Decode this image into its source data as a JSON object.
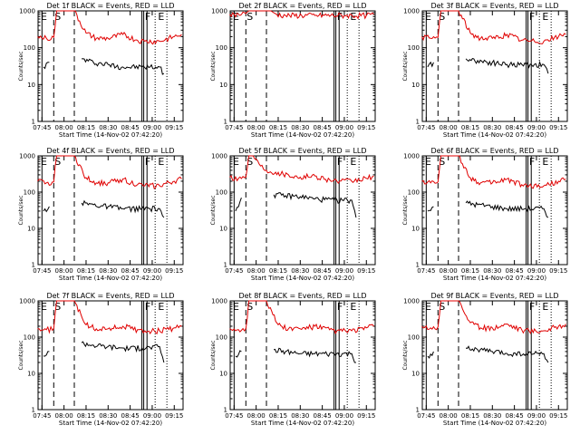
{
  "figure": {
    "x_axis_title": "Start Time (14-Nov-02 07:42:20)",
    "y_axis_title": "Counts/sec",
    "x_tick_labels": [
      "07:45",
      "08:00",
      "08:15",
      "08:30",
      "08:45",
      "09:00",
      "09:15"
    ],
    "y_tick_labels": [
      "1",
      "10",
      "100",
      "1000"
    ],
    "colors": {
      "events": "#000000",
      "lld": "#e00000"
    },
    "legend_text": "BLACK = Events, RED = LLD"
  },
  "chart_data": [
    {
      "type": "line",
      "title": "Det 1f BLACK = Events, RED = LLD",
      "markers": [
        "E",
        "S",
        "F",
        "E"
      ],
      "series": [
        {
          "key": "events",
          "x": [
            "07:45",
            "07:46",
            "07:50",
            "07:53",
            "08:07",
            "08:12",
            "08:20",
            "08:30",
            "08:40",
            "08:53",
            "09:05",
            "09:08"
          ],
          "values": [
            null,
            30,
            40,
            null,
            null,
            50,
            40,
            35,
            30,
            30,
            30,
            20
          ]
        },
        {
          "key": "lld",
          "x": [
            "07:42",
            "07:48",
            "07:53",
            "07:55",
            "07:58",
            "08:02",
            "08:07",
            "08:15",
            "08:22",
            "08:30",
            "08:40",
            "08:50",
            "08:55",
            "09:05",
            "09:15",
            "09:20"
          ],
          "values": [
            200,
            180,
            190,
            1000,
            1000,
            1000,
            1000,
            250,
            180,
            180,
            230,
            160,
            150,
            150,
            200,
            230
          ]
        }
      ]
    },
    {
      "type": "line",
      "title": "Det 2f BLACK = Events, RED = LLD",
      "markers": [
        "E",
        "S",
        "F",
        "E"
      ],
      "series": [
        {
          "key": "events",
          "x": [],
          "values": []
        },
        {
          "key": "lld",
          "x": [
            "07:42",
            "07:48",
            "07:53",
            "07:55",
            "08:05",
            "08:10",
            "08:14",
            "08:20",
            "08:40",
            "09:00",
            "09:15",
            "09:20"
          ],
          "values": [
            800,
            800,
            850,
            1000,
            1000,
            1000,
            800,
            750,
            750,
            750,
            750,
            800
          ]
        }
      ]
    },
    {
      "type": "line",
      "title": "Det 3f BLACK = Events, RED = LLD",
      "markers": [
        "E",
        "S",
        "F",
        "E"
      ],
      "series": [
        {
          "key": "events",
          "x": [
            "07:45",
            "07:46",
            "07:50",
            "07:53",
            "08:07",
            "08:12",
            "08:20",
            "08:30",
            "08:40",
            "08:53",
            "09:05",
            "09:08"
          ],
          "values": [
            null,
            30,
            40,
            null,
            null,
            50,
            45,
            40,
            35,
            35,
            35,
            20
          ]
        },
        {
          "key": "lld",
          "x": [
            "07:42",
            "07:48",
            "07:53",
            "07:55",
            "07:58",
            "08:02",
            "08:07",
            "08:15",
            "08:22",
            "08:30",
            "08:40",
            "08:50",
            "08:55",
            "09:05",
            "09:15",
            "09:20"
          ],
          "values": [
            200,
            180,
            190,
            1000,
            1000,
            1000,
            1000,
            250,
            180,
            180,
            230,
            160,
            150,
            150,
            200,
            230
          ]
        }
      ]
    },
    {
      "type": "line",
      "title": "Det 4f BLACK = Events, RED = LLD",
      "markers": [
        "E",
        "S",
        "F",
        "E"
      ],
      "series": [
        {
          "key": "events",
          "x": [
            "07:45",
            "07:46",
            "07:50",
            "07:53",
            "08:07",
            "08:12",
            "08:20",
            "08:30",
            "08:40",
            "08:53",
            "09:05",
            "09:08"
          ],
          "values": [
            null,
            30,
            40,
            null,
            null,
            50,
            45,
            40,
            35,
            35,
            35,
            20
          ]
        },
        {
          "key": "lld",
          "x": [
            "07:42",
            "07:48",
            "07:53",
            "07:55",
            "07:58",
            "08:02",
            "08:07",
            "08:15",
            "08:22",
            "08:30",
            "08:40",
            "08:50",
            "08:55",
            "09:05",
            "09:15",
            "09:20"
          ],
          "values": [
            200,
            180,
            190,
            1000,
            1000,
            1000,
            1000,
            250,
            180,
            180,
            230,
            160,
            150,
            150,
            200,
            230
          ]
        }
      ]
    },
    {
      "type": "line",
      "title": "Det 5f BLACK = Events, RED = LLD",
      "markers": [
        "E",
        "S",
        "F",
        "E"
      ],
      "series": [
        {
          "key": "events",
          "x": [
            "07:45",
            "07:46",
            "07:50",
            "07:53",
            "08:07",
            "08:12",
            "08:20",
            "08:30",
            "08:40",
            "08:53",
            "09:05",
            "09:08"
          ],
          "values": [
            null,
            30,
            70,
            null,
            null,
            85,
            80,
            75,
            65,
            60,
            60,
            20
          ]
        },
        {
          "key": "lld",
          "x": [
            "07:42",
            "07:48",
            "07:53",
            "07:55",
            "07:58",
            "08:02",
            "08:07",
            "08:15",
            "08:22",
            "08:30",
            "08:40",
            "08:50",
            "08:55",
            "09:05",
            "09:15",
            "09:20"
          ],
          "values": [
            260,
            240,
            260,
            1000,
            1000,
            600,
            400,
            350,
            300,
            260,
            280,
            220,
            200,
            200,
            240,
            280
          ]
        }
      ]
    },
    {
      "type": "line",
      "title": "Det 6f BLACK = Events, RED = LLD",
      "markers": [
        "E",
        "S",
        "F",
        "E"
      ],
      "series": [
        {
          "key": "events",
          "x": [
            "07:45",
            "07:46",
            "07:50",
            "07:53",
            "08:07",
            "08:12",
            "08:20",
            "08:30",
            "08:40",
            "08:53",
            "09:05",
            "09:08"
          ],
          "values": [
            null,
            30,
            40,
            null,
            null,
            50,
            45,
            40,
            35,
            35,
            35,
            20
          ]
        },
        {
          "key": "lld",
          "x": [
            "07:42",
            "07:48",
            "07:53",
            "07:55",
            "07:58",
            "08:02",
            "08:07",
            "08:15",
            "08:22",
            "08:30",
            "08:40",
            "08:50",
            "08:55",
            "09:05",
            "09:15",
            "09:20"
          ],
          "values": [
            200,
            180,
            190,
            1000,
            1000,
            1000,
            1000,
            250,
            180,
            180,
            230,
            160,
            150,
            150,
            200,
            230
          ]
        }
      ]
    },
    {
      "type": "line",
      "title": "Det 7f BLACK = Events, RED = LLD",
      "markers": [
        "E",
        "S",
        "F",
        "E"
      ],
      "series": [
        {
          "key": "events",
          "x": [
            "07:45",
            "07:46",
            "07:50",
            "07:53",
            "08:07",
            "08:12",
            "08:20",
            "08:30",
            "08:40",
            "08:53",
            "09:05",
            "09:08"
          ],
          "values": [
            null,
            30,
            40,
            null,
            null,
            70,
            60,
            55,
            50,
            50,
            55,
            20
          ]
        },
        {
          "key": "lld",
          "x": [
            "07:42",
            "07:48",
            "07:53",
            "07:55",
            "07:58",
            "08:02",
            "08:07",
            "08:15",
            "08:22",
            "08:30",
            "08:40",
            "08:50",
            "08:55",
            "09:05",
            "09:15",
            "09:20"
          ],
          "values": [
            170,
            160,
            170,
            1000,
            1000,
            1000,
            1000,
            220,
            170,
            170,
            200,
            160,
            150,
            150,
            180,
            200
          ]
        }
      ]
    },
    {
      "type": "line",
      "title": "Det 8f BLACK = Events, RED = LLD",
      "markers": [
        "E",
        "S",
        "F",
        "E"
      ],
      "series": [
        {
          "key": "events",
          "x": [
            "07:45",
            "07:46",
            "07:50",
            "07:53",
            "08:07",
            "08:12",
            "08:20",
            "08:30",
            "08:40",
            "08:53",
            "09:05",
            "09:08"
          ],
          "values": [
            null,
            30,
            40,
            null,
            null,
            45,
            40,
            35,
            35,
            35,
            35,
            20
          ]
        },
        {
          "key": "lld",
          "x": [
            "07:42",
            "07:48",
            "07:53",
            "07:55",
            "07:58",
            "08:02",
            "08:07",
            "08:15",
            "08:22",
            "08:30",
            "08:40",
            "08:50",
            "08:55",
            "09:05",
            "09:15",
            "09:20"
          ],
          "values": [
            170,
            160,
            170,
            1000,
            1000,
            1000,
            1000,
            220,
            170,
            170,
            200,
            160,
            150,
            150,
            180,
            200
          ]
        }
      ]
    },
    {
      "type": "line",
      "title": "Det 9f BLACK = Events, RED = LLD",
      "markers": [
        "E",
        "S",
        "F",
        "E"
      ],
      "series": [
        {
          "key": "events",
          "x": [
            "07:45",
            "07:46",
            "07:50",
            "07:53",
            "08:07",
            "08:12",
            "08:20",
            "08:30",
            "08:40",
            "08:53",
            "09:05",
            "09:08"
          ],
          "values": [
            null,
            30,
            40,
            null,
            null,
            50,
            45,
            40,
            35,
            35,
            35,
            20
          ]
        },
        {
          "key": "lld",
          "x": [
            "07:42",
            "07:48",
            "07:53",
            "07:55",
            "07:58",
            "08:02",
            "08:07",
            "08:15",
            "08:22",
            "08:30",
            "08:40",
            "08:50",
            "08:55",
            "09:05",
            "09:15",
            "09:20"
          ],
          "values": [
            200,
            180,
            190,
            1000,
            1000,
            1000,
            1000,
            250,
            180,
            180,
            230,
            160,
            150,
            150,
            200,
            230
          ]
        }
      ]
    }
  ]
}
